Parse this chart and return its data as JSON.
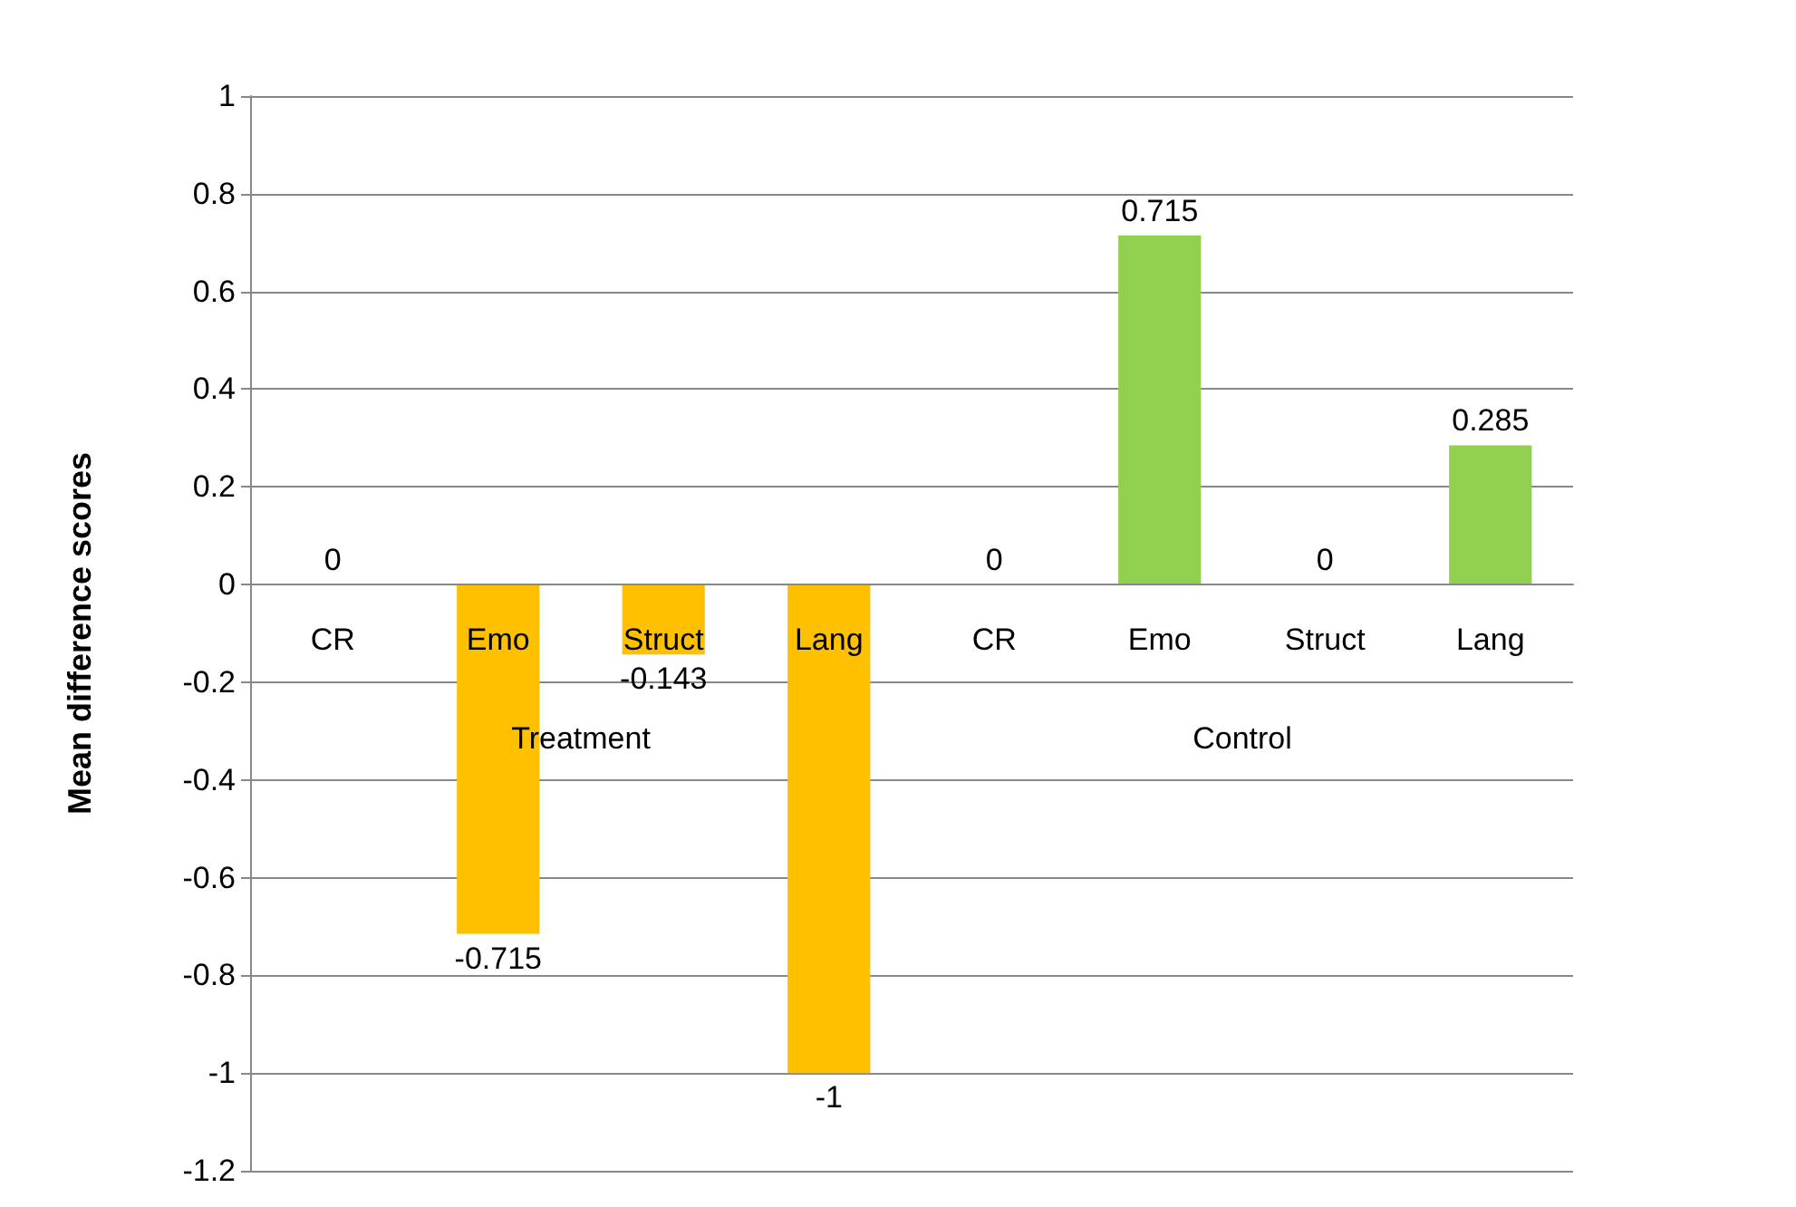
{
  "chart_data": {
    "type": "bar",
    "ylabel": "Mean difference scores",
    "categories": [
      "CR",
      "Emo",
      "Struct",
      "Lang",
      "CR",
      "Emo",
      "Struct",
      "Lang"
    ],
    "series": [
      {
        "color": "#ffc000",
        "values": [
          0,
          -0.715,
          -0.143,
          -1,
          null,
          null,
          null,
          null
        ]
      },
      {
        "color": "#92d050",
        "values": [
          null,
          null,
          null,
          null,
          0,
          0.715,
          0,
          0.285
        ]
      }
    ],
    "annotations": [
      "Treatment",
      "Control"
    ],
    "ylim": [
      -1.2,
      1
    ],
    "yticks": [
      -1.2,
      -1,
      -0.8,
      -0.6,
      -0.4,
      -0.2,
      0,
      0.2,
      0.4,
      0.6,
      0.8,
      1
    ],
    "grid": "y",
    "data_labels": true
  }
}
